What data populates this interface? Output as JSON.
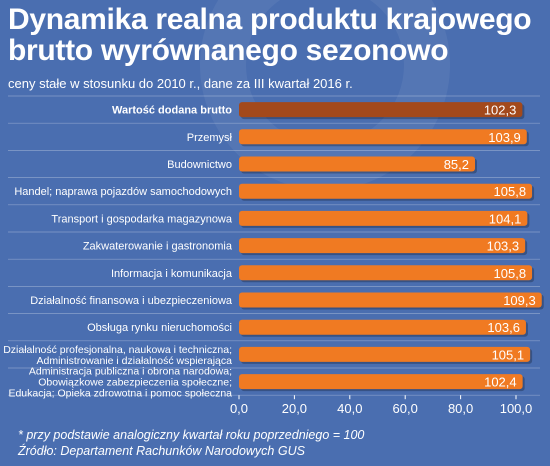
{
  "title": "Dynamika realna produktu krajowego brutto wyrównanego sezonowo",
  "subtitle": "ceny stałe w stosunku do 2010 r., dane za III kwartał 2016 r.",
  "footnote": "* przy podstawie analogiczny kwartał roku poprzedniego = 100",
  "source": "Źródło: Departament Rachunków Narodowych  GUS",
  "colors": {
    "background": "#4a6eb0",
    "bar": "#f07a22",
    "bar_highlight": "#a3491b",
    "text": "#ffffff"
  },
  "chart_data": {
    "type": "bar",
    "orientation": "horizontal",
    "categories": [
      [
        "Wartość dodana brutto"
      ],
      [
        "Przemysł"
      ],
      [
        "Budownictwo"
      ],
      [
        "Handel; naprawa pojazdów samochodowych"
      ],
      [
        "Transport i gospodarka magazynowa"
      ],
      [
        "Zakwaterowanie i gastronomia"
      ],
      [
        "Informacja i komunikacja"
      ],
      [
        "Działalność finansowa i ubezpieczeniowa"
      ],
      [
        "Obsługa rynku nieruchomości"
      ],
      [
        "Działalność profesjonalna, naukowa i techniczna;",
        "Administrowanie i działalność wspierająca"
      ],
      [
        "Administracja publiczna i obrona narodowa;",
        "Obowiązkowe zabezpieczenia społeczne;",
        "Edukacja; Opieka zdrowotna i pomoc społeczna"
      ]
    ],
    "values": [
      102.3,
      103.9,
      85.2,
      105.8,
      104.1,
      103.3,
      105.8,
      109.3,
      103.6,
      105.1,
      102.4
    ],
    "value_labels": [
      "102,3",
      "103,9",
      "85,2",
      "105,8",
      "104,1",
      "103,3",
      "105,8",
      "109,3",
      "103,6",
      "105,1",
      "102,4"
    ],
    "highlight_index": 0,
    "xlim": [
      0,
      100
    ],
    "xticks": [
      0,
      20,
      40,
      60,
      80,
      100
    ],
    "xtick_labels": [
      "0,0",
      "20,0",
      "40,0",
      "60,0",
      "80,0",
      "100,0"
    ]
  }
}
